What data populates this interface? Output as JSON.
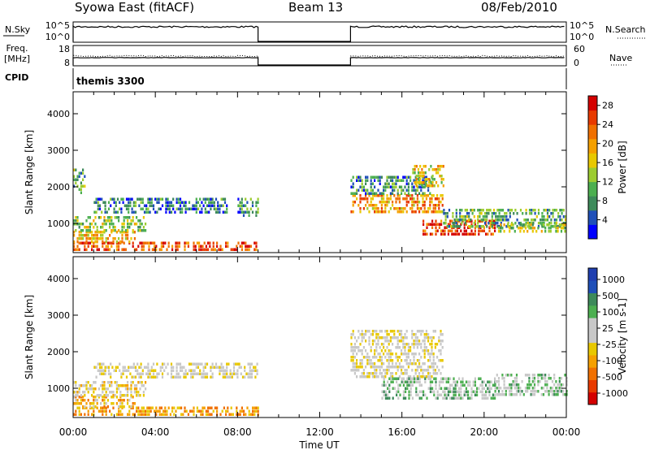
{
  "header": {
    "station": "Syowa East (fitACF)",
    "beam": "Beam 13",
    "date": "08/Feb/2010"
  },
  "noise_panel": {
    "left_label": "N.Sky",
    "left_ticks": [
      "10^5",
      "10^0"
    ],
    "right_label": "N.Search",
    "right_ticks": [
      "10^5",
      "10^0"
    ]
  },
  "freq_panel": {
    "left_label_lines": [
      "Freq.",
      "[MHz]"
    ],
    "left_ticks": [
      "18",
      "8"
    ],
    "right_label": "Nave",
    "right_ticks": [
      "60",
      "0"
    ]
  },
  "cpid": {
    "label": "CPID",
    "value": "themis 3300"
  },
  "time_axis": {
    "label": "Time UT",
    "ticks": [
      "00:00",
      "04:00",
      "08:00",
      "12:00",
      "16:00",
      "20:00",
      "00:00"
    ]
  },
  "colors": {
    "power_scale": [
      "#0000ff",
      "#1f4fb8",
      "#3d8a5a",
      "#4caf50",
      "#9ccc30",
      "#e8c800",
      "#f5a000",
      "#f07000",
      "#e83a00",
      "#d40000"
    ],
    "velocity_scale": [
      "#d40000",
      "#e83a00",
      "#f07000",
      "#f5a000",
      "#e8c800",
      "#c8c8c8",
      "#c8c8c8",
      "#4caf50",
      "#3d8a5a",
      "#1f4fb8",
      "#1f3fb0"
    ]
  },
  "chart_data": [
    {
      "type": "heatmap",
      "name": "power",
      "xlabel": "Time UT",
      "ylabel": "Slant Range [km]",
      "xlim": [
        0,
        24
      ],
      "ylim": [
        200,
        4600
      ],
      "yticks": [
        1000,
        2000,
        3000,
        4000
      ],
      "colorbar": {
        "label": "Power [dB]",
        "ticks": [
          "4",
          "8",
          "12",
          "16",
          "20",
          "24",
          "28"
        ],
        "range": [
          0,
          30
        ]
      },
      "echo_regions": [
        {
          "t0": 0.0,
          "t1": 9.0,
          "r0": 250,
          "r1": 500,
          "level": 0.85
        },
        {
          "t0": 0.0,
          "t1": 3.0,
          "r0": 500,
          "r1": 800,
          "level": 0.6
        },
        {
          "t0": 0.0,
          "t1": 3.5,
          "r0": 800,
          "r1": 1200,
          "level": 0.45
        },
        {
          "t0": 0.0,
          "t1": 0.6,
          "r0": 1800,
          "r1": 2500,
          "level": 0.3
        },
        {
          "t0": 1.0,
          "t1": 7.5,
          "r0": 1300,
          "r1": 1700,
          "level": 0.2
        },
        {
          "t0": 8.0,
          "t1": 9.0,
          "r0": 1200,
          "r1": 1700,
          "level": 0.25
        },
        {
          "t0": 13.5,
          "t1": 18.0,
          "r0": 1300,
          "r1": 1800,
          "level": 0.7
        },
        {
          "t0": 13.5,
          "t1": 17.5,
          "r0": 1800,
          "r1": 2300,
          "level": 0.25
        },
        {
          "t0": 16.5,
          "t1": 18.0,
          "r0": 2000,
          "r1": 2600,
          "level": 0.55
        },
        {
          "t0": 17.0,
          "t1": 20.5,
          "r0": 700,
          "r1": 1100,
          "level": 0.9
        },
        {
          "t0": 18.0,
          "t1": 24.0,
          "r0": 900,
          "r1": 1400,
          "level": 0.3
        },
        {
          "t0": 20.5,
          "t1": 24.0,
          "r0": 800,
          "r1": 1000,
          "level": 0.45
        }
      ]
    },
    {
      "type": "heatmap",
      "name": "velocity",
      "xlabel": "Time UT",
      "ylabel": "Slant Range [km]",
      "xlim": [
        0,
        24
      ],
      "ylim": [
        200,
        4600
      ],
      "yticks": [
        1000,
        2000,
        3000,
        4000
      ],
      "colorbar": {
        "label": "Velocity [m s-1]",
        "ticks": [
          "1000",
          "500",
          "100",
          "25",
          "-25",
          "-100",
          "-500",
          "-1000"
        ]
      },
      "echo_regions": [
        {
          "t0": 0.0,
          "t1": 9.0,
          "r0": 250,
          "r1": 500,
          "level": 0.25
        },
        {
          "t0": 0.0,
          "t1": 3.0,
          "r0": 500,
          "r1": 800,
          "level": 0.3
        },
        {
          "t0": 0.0,
          "t1": 3.5,
          "r0": 800,
          "r1": 1200,
          "level": 0.45
        },
        {
          "t0": 1.0,
          "t1": 9.0,
          "r0": 1300,
          "r1": 1700,
          "level": 0.5
        },
        {
          "t0": 13.5,
          "t1": 18.0,
          "r0": 1300,
          "r1": 2600,
          "level": 0.5
        },
        {
          "t0": 15.0,
          "t1": 20.5,
          "r0": 700,
          "r1": 1300,
          "level": 0.7
        },
        {
          "t0": 20.5,
          "t1": 24.0,
          "r0": 800,
          "r1": 1400,
          "level": 0.65
        }
      ]
    }
  ]
}
